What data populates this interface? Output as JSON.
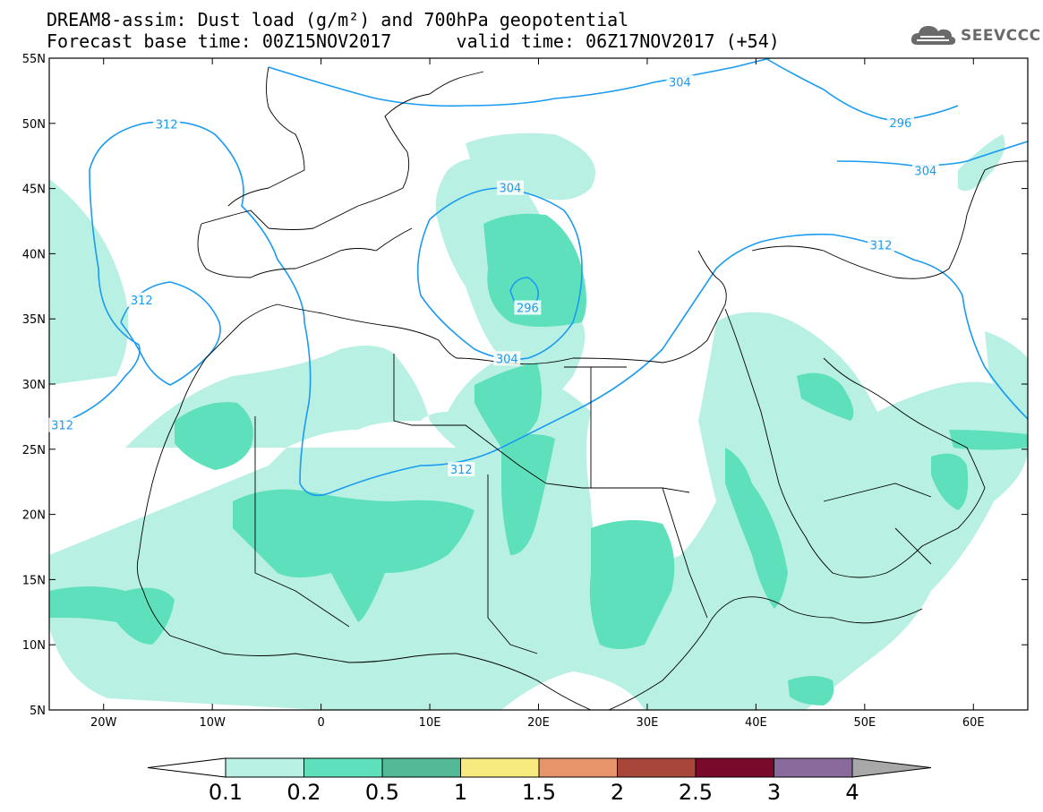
{
  "title": {
    "line1": "DREAM8-assim: Dust load (g/m²) and 700hPa geopotential",
    "line2": "Forecast base time: 00Z15NOV2017      valid time: 06Z17NOV2017 (+54)"
  },
  "logo": {
    "text": "SEEVCCC",
    "icon": "cloud-logo-icon"
  },
  "map": {
    "lon_range": [
      -25,
      65
    ],
    "lat_range": [
      5,
      55
    ],
    "lon_ticks": [
      {
        "value": -20,
        "label": "20W"
      },
      {
        "value": -10,
        "label": "10W"
      },
      {
        "value": 0,
        "label": "0"
      },
      {
        "value": 10,
        "label": "10E"
      },
      {
        "value": 20,
        "label": "20E"
      },
      {
        "value": 30,
        "label": "30E"
      },
      {
        "value": 40,
        "label": "40E"
      },
      {
        "value": 50,
        "label": "50E"
      },
      {
        "value": 60,
        "label": "60E"
      }
    ],
    "lat_ticks": [
      {
        "value": 55,
        "label": "55N"
      },
      {
        "value": 50,
        "label": "50N"
      },
      {
        "value": 45,
        "label": "45N"
      },
      {
        "value": 40,
        "label": "40N"
      },
      {
        "value": 35,
        "label": "35N"
      },
      {
        "value": 30,
        "label": "30N"
      },
      {
        "value": 25,
        "label": "25N"
      },
      {
        "value": 20,
        "label": "20N"
      },
      {
        "value": 15,
        "label": "15N"
      },
      {
        "value": 10,
        "label": "10N"
      },
      {
        "value": 5,
        "label": "5N"
      }
    ],
    "contour_color": "#1a9bf0",
    "contour_labels": [
      {
        "text": "312",
        "lon": -14.2,
        "lat": 49.9
      },
      {
        "text": "312",
        "lon": -16.5,
        "lat": 36.4
      },
      {
        "text": "312",
        "lon": -23.8,
        "lat": 26.8
      },
      {
        "text": "304",
        "lon": 17.4,
        "lat": 45.0
      },
      {
        "text": "296",
        "lon": 19.0,
        "lat": 35.8
      },
      {
        "text": "304",
        "lon": 17.1,
        "lat": 31.9
      },
      {
        "text": "312",
        "lon": 12.9,
        "lat": 23.4
      },
      {
        "text": "312",
        "lon": 51.5,
        "lat": 40.6
      },
      {
        "text": "304",
        "lon": 33.0,
        "lat": 53.1
      },
      {
        "text": "296",
        "lon": 53.3,
        "lat": 50.0
      },
      {
        "text": "304",
        "lon": 55.6,
        "lat": 46.3
      }
    ]
  },
  "colorbar": {
    "labels": [
      "0.1",
      "0.2",
      "0.5",
      "1",
      "1.5",
      "2",
      "2.5",
      "3",
      "4"
    ],
    "colors": [
      "#b8f0e4",
      "#5ee0bc",
      "#52b896",
      "#f7ea7f",
      "#e8946a",
      "#a8463a",
      "#7a0a2c",
      "#8a6a9c"
    ],
    "under_color": "#ffffff",
    "over_color": "#a8a8a8"
  }
}
